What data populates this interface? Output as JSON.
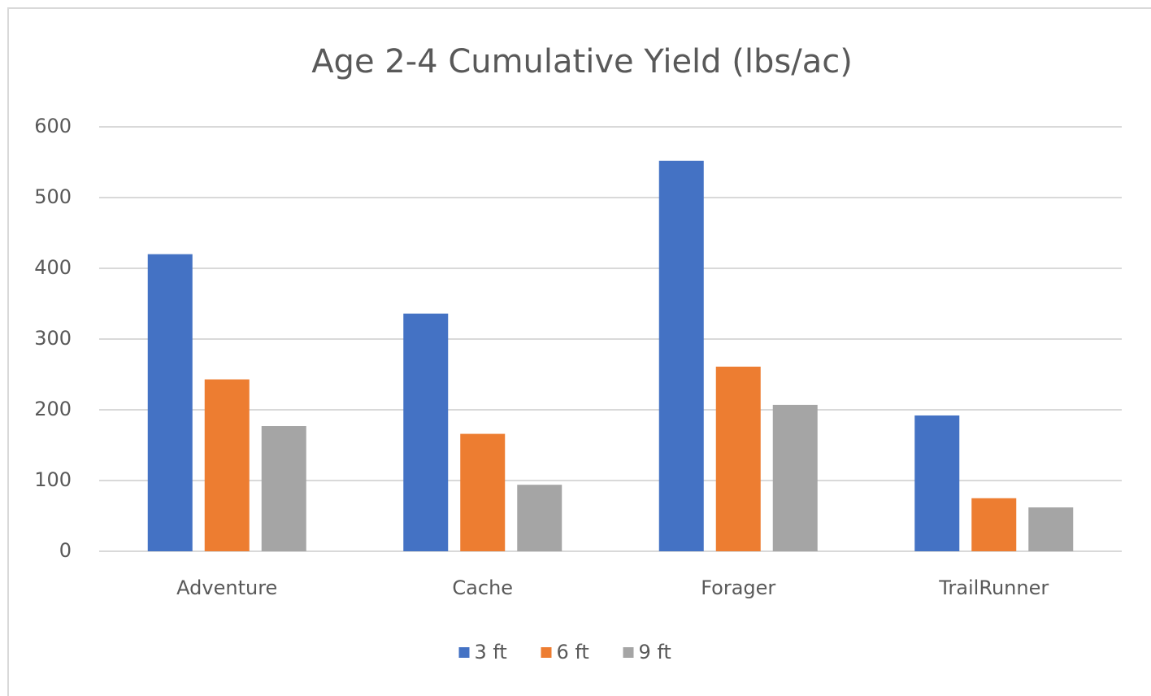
{
  "chart_data": {
    "type": "bar",
    "title": "Age 2-4 Cumulative Yield (lbs/ac)",
    "categories": [
      "Adventure",
      "Cache",
      "Forager",
      "TrailRunner"
    ],
    "series": [
      {
        "name": "3 ft",
        "color": "#4472c4",
        "values": [
          420,
          336,
          552,
          192
        ]
      },
      {
        "name": "6 ft",
        "color": "#ed7d31",
        "values": [
          243,
          166,
          261,
          75
        ]
      },
      {
        "name": "9 ft",
        "color": "#a5a5a5",
        "values": [
          177,
          94,
          207,
          62
        ]
      }
    ],
    "ylim": [
      0,
      600
    ],
    "yticks": [
      0,
      100,
      200,
      300,
      400,
      500,
      600
    ],
    "grid": true,
    "legend": "bottom"
  }
}
